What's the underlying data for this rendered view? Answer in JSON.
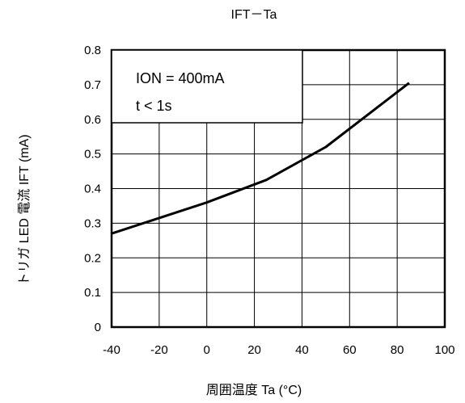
{
  "chart_data": {
    "type": "line",
    "title": "IFT－Ta",
    "xlabel": "周囲温度  Ta (°C)",
    "ylabel": "トリガ LED 電流  IFT (mA)",
    "xlim": [
      -40,
      100
    ],
    "ylim": [
      0,
      0.8
    ],
    "xticks": [
      "-40",
      "-20",
      "0",
      "20",
      "40",
      "60",
      "80",
      "100"
    ],
    "yticks": [
      "0",
      "0.1",
      "0.2",
      "0.3",
      "0.4",
      "0.5",
      "0.6",
      "0.7",
      "0.8"
    ],
    "grid": true,
    "annotation": [
      "ION = 400mA",
      "t < 1s"
    ],
    "series": [
      {
        "x": [
          -40,
          -20,
          0,
          25,
          50,
          85
        ],
        "y": [
          0.27,
          0.315,
          0.36,
          0.425,
          0.52,
          0.705
        ]
      }
    ]
  }
}
